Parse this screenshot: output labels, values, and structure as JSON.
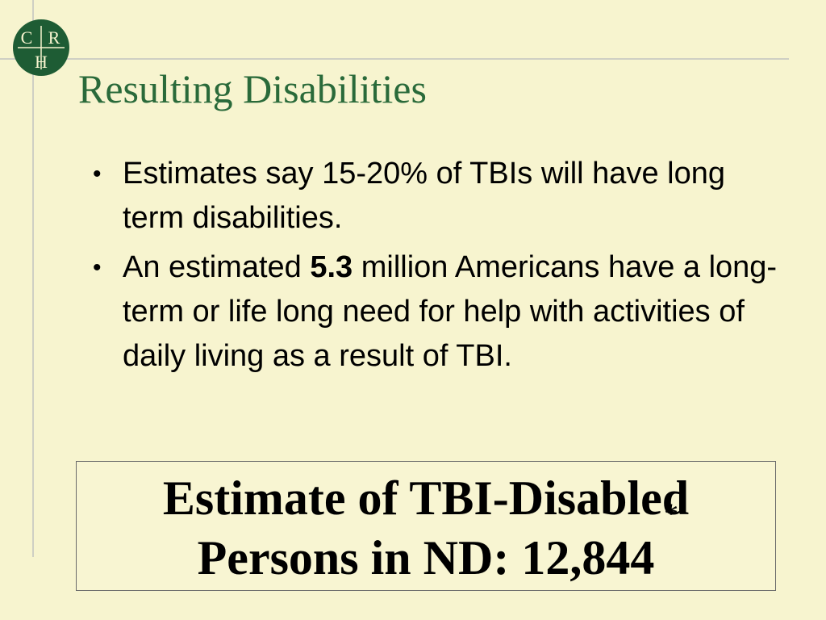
{
  "logo": {
    "letters": [
      "C",
      "R",
      "H"
    ],
    "color": "#1e5c34"
  },
  "title": "Resulting Disabilities",
  "bullets": [
    {
      "text": "Estimates say 15-20% of TBIs will have long term disabilities."
    },
    {
      "before": "An estimated ",
      "bold": "5.3",
      "after": " million Americans have a long-term or life long need for help with activities of daily living as a result of TBI."
    }
  ],
  "callout": {
    "line1": "Estimate of TBI-Disabled",
    "line2": "Persons in ND:  12,844",
    "asterisk": "*"
  },
  "colors": {
    "background": "#f7f4cf",
    "title": "#2a6a3a",
    "rule_lines": "#cfcfc4"
  }
}
